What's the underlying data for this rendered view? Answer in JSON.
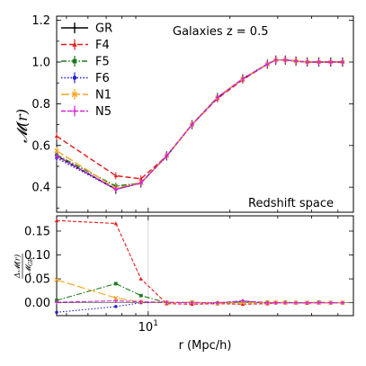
{
  "chart_data": [
    {
      "type": "line",
      "ylabel": "𝓜(r)",
      "annotation_top": "Galaxies z = 0.5",
      "annotation_bottom": "Redshift space",
      "xscale": "log",
      "xlim": [
        4.6,
        57
      ],
      "ylim": [
        0.28,
        1.22
      ],
      "yticks": [
        0.4,
        0.6,
        0.8,
        1.0,
        1.2
      ],
      "ytick_labels": [
        "0.4",
        "0.6",
        "0.8",
        "1.0",
        "1.2"
      ],
      "legend_position": "top-left",
      "x": [
        4.6,
        7.6,
        9.4,
        11.7,
        14.5,
        18.0,
        22.3,
        27.5,
        29.5,
        32.0,
        35.0,
        38.5,
        42.5,
        47.0,
        52.0
      ],
      "series": [
        {
          "name": "GR",
          "color": "#000000",
          "dash": "",
          "marker": "none",
          "values": [
            0.55,
            0.39,
            0.42,
            0.55,
            0.7,
            0.83,
            0.92,
            0.99,
            1.01,
            1.01,
            1.005,
            1.0,
            1.0,
            1.0,
            1.0
          ]
        },
        {
          "name": "F4",
          "color": "#e31a1c",
          "dash": "6,3",
          "marker": "triangle",
          "values": [
            0.645,
            0.455,
            0.44,
            0.55,
            0.7,
            0.825,
            0.915,
            0.99,
            1.01,
            1.01,
            1.005,
            1.0,
            1.0,
            1.0,
            1.0
          ]
        },
        {
          "name": "F5",
          "color": "#1b7a1b",
          "dash": "6,2,1.5,2",
          "marker": "square",
          "values": [
            0.555,
            0.405,
            0.42,
            0.55,
            0.7,
            0.83,
            0.92,
            0.99,
            1.01,
            1.01,
            1.005,
            1.0,
            1.0,
            1.0,
            1.0
          ]
        },
        {
          "name": "F6",
          "color": "#1f1fd6",
          "dash": "1.5,2",
          "marker": "circle",
          "values": [
            0.54,
            0.39,
            0.42,
            0.55,
            0.7,
            0.83,
            0.92,
            0.99,
            1.01,
            1.01,
            1.005,
            1.0,
            1.0,
            1.0,
            1.0
          ]
        },
        {
          "name": "N1",
          "color": "#f5a623",
          "dash": "9,3",
          "marker": "x",
          "values": [
            0.575,
            0.395,
            0.42,
            0.55,
            0.7,
            0.83,
            0.92,
            0.99,
            1.01,
            1.01,
            1.005,
            1.0,
            1.0,
            1.0,
            1.0
          ]
        },
        {
          "name": "N5",
          "color": "#d623d6",
          "dash": "5,2",
          "marker": "plus",
          "values": [
            0.55,
            0.39,
            0.42,
            0.55,
            0.7,
            0.83,
            0.92,
            0.99,
            1.01,
            1.01,
            1.005,
            1.0,
            1.0,
            1.0,
            1.0
          ]
        }
      ]
    },
    {
      "type": "line",
      "ylabel": "ΔM(r) / M_GR",
      "xlabel": "r (Mpc/h)",
      "xscale": "log",
      "xlim": [
        4.6,
        57
      ],
      "ylim": [
        -0.027,
        0.182
      ],
      "yticks": [
        0.0,
        0.05,
        0.1,
        0.15
      ],
      "ytick_labels": [
        "0.00",
        "0.05",
        "0.10",
        "0.15"
      ],
      "xticks": [
        10
      ],
      "xtick_labels": [
        "10"
      ],
      "x": [
        4.6,
        7.6,
        9.4,
        11.7,
        14.5,
        18.0,
        22.3,
        27.5,
        29.5,
        32.0,
        35.0,
        38.5,
        42.5,
        47.0,
        52.0
      ],
      "series": [
        {
          "name": "F4",
          "color": "#e31a1c",
          "dash": "4,2",
          "marker": "triangle",
          "values": [
            0.172,
            0.166,
            0.05,
            -0.002,
            -0.003,
            -0.002,
            -0.003,
            -0.002,
            0.0,
            0.0,
            0.0,
            -0.001,
            0.0,
            0.0,
            0.0
          ]
        },
        {
          "name": "F5",
          "color": "#1b7a1b",
          "dash": "6,2,1.5,2",
          "marker": "square",
          "values": [
            0.005,
            0.04,
            0.015,
            0.0,
            0.001,
            -0.001,
            0.002,
            0.001,
            0.0,
            0.001,
            0.0,
            0.0,
            0.001,
            0.0,
            0.0
          ]
        },
        {
          "name": "F6",
          "color": "#1f1fd6",
          "dash": "1.5,2",
          "marker": "circle",
          "values": [
            -0.02,
            -0.008,
            0.0,
            0.001,
            0.0,
            0.0,
            0.003,
            0.0,
            0.0,
            0.0,
            0.0,
            0.0,
            0.001,
            0.0,
            0.0
          ]
        },
        {
          "name": "N1",
          "color": "#f5a623",
          "dash": "9,3",
          "marker": "x",
          "values": [
            0.048,
            0.01,
            0.002,
            0.0,
            0.001,
            -0.001,
            0.0,
            0.0,
            0.001,
            0.0,
            0.0,
            0.0,
            0.0,
            0.0,
            0.0
          ]
        },
        {
          "name": "N5",
          "color": "#d623d6",
          "dash": "5,2",
          "marker": "plus",
          "values": [
            0.001,
            0.004,
            0.002,
            0.001,
            0.0,
            0.0,
            0.004,
            0.0,
            0.0,
            0.0,
            0.0,
            0.0,
            0.0,
            0.0,
            0.0
          ]
        }
      ]
    }
  ]
}
